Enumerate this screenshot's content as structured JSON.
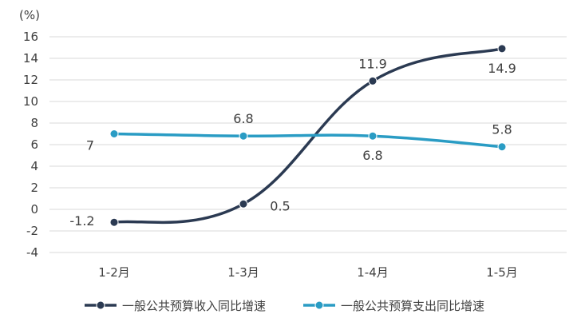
{
  "chart_data": {
    "type": "line",
    "unit_label": "(%)",
    "categories": [
      "1-2月",
      "1-3月",
      "1-4月",
      "1-5月"
    ],
    "ylim": [
      -4,
      16
    ],
    "yticks": [
      -4,
      -2,
      0,
      2,
      4,
      6,
      8,
      10,
      12,
      14,
      16
    ],
    "ytick_labels": [
      "-4",
      "-2",
      "0",
      "2",
      "4",
      "6",
      "8",
      "10",
      "12",
      "14",
      "16"
    ],
    "grid": true,
    "legend_position": "bottom",
    "series": [
      {
        "name": "一般公共预算收入同比增速",
        "values": [
          -1.2,
          0.5,
          11.9,
          14.9
        ],
        "labels": [
          "-1.2",
          "0.5",
          "11.9",
          "14.9"
        ],
        "label_positions": [
          "left",
          "right",
          "above",
          "below"
        ],
        "color": "#2b3a52"
      },
      {
        "name": "一般公共预算支出同比增速",
        "values": [
          7,
          6.8,
          6.8,
          5.8
        ],
        "labels": [
          "7",
          "6.8",
          "6.8",
          "5.8"
        ],
        "label_positions": [
          "below-left",
          "above",
          "below",
          "above"
        ],
        "color": "#2a9cc4"
      }
    ]
  }
}
